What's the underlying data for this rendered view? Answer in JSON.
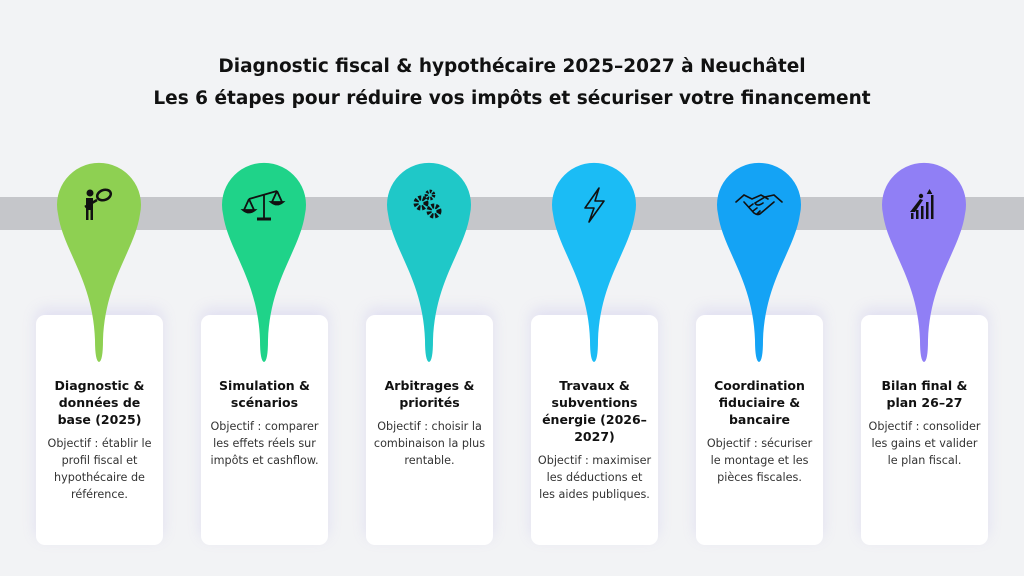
{
  "header": {
    "title": "Diagnostic fiscal & hypothécaire 2025–2027 à Neuchâtel",
    "subtitle": "Les 6 étapes pour réduire vos impôts et sécuriser votre financement"
  },
  "steps": [
    {
      "title": "Diagnostic & données de base (2025)",
      "description": "Objectif : établir le profil fiscal et hypothécaire de référence.",
      "color": "#8ed052",
      "icon": "person-magnifier-icon"
    },
    {
      "title": "Simulation & scénarios",
      "description": "Objectif : comparer les effets réels sur impôts et cashflow.",
      "color": "#1fd389",
      "icon": "balance-scale-icon"
    },
    {
      "title": "Arbitrages & priorités",
      "description": "Objectif : choisir la combinaison la plus rentable.",
      "color": "#1fc8c8",
      "icon": "gears-icon"
    },
    {
      "title": "Travaux & subventions énergie (2026–2027)",
      "description": "Objectif : maximiser les déductions et les aides publiques.",
      "color": "#1bbcf5",
      "icon": "lightning-icon"
    },
    {
      "title": "Coordination fiduciaire & bancaire",
      "description": "Objectif : sécuriser le montage et les pièces fiscales.",
      "color": "#14a3f5",
      "icon": "handshake-icon"
    },
    {
      "title": "Bilan final & plan 26–27",
      "description": "Objectif : consolider les gains et valider le plan fiscal.",
      "color": "#907ff5",
      "icon": "growth-chart-icon"
    }
  ]
}
